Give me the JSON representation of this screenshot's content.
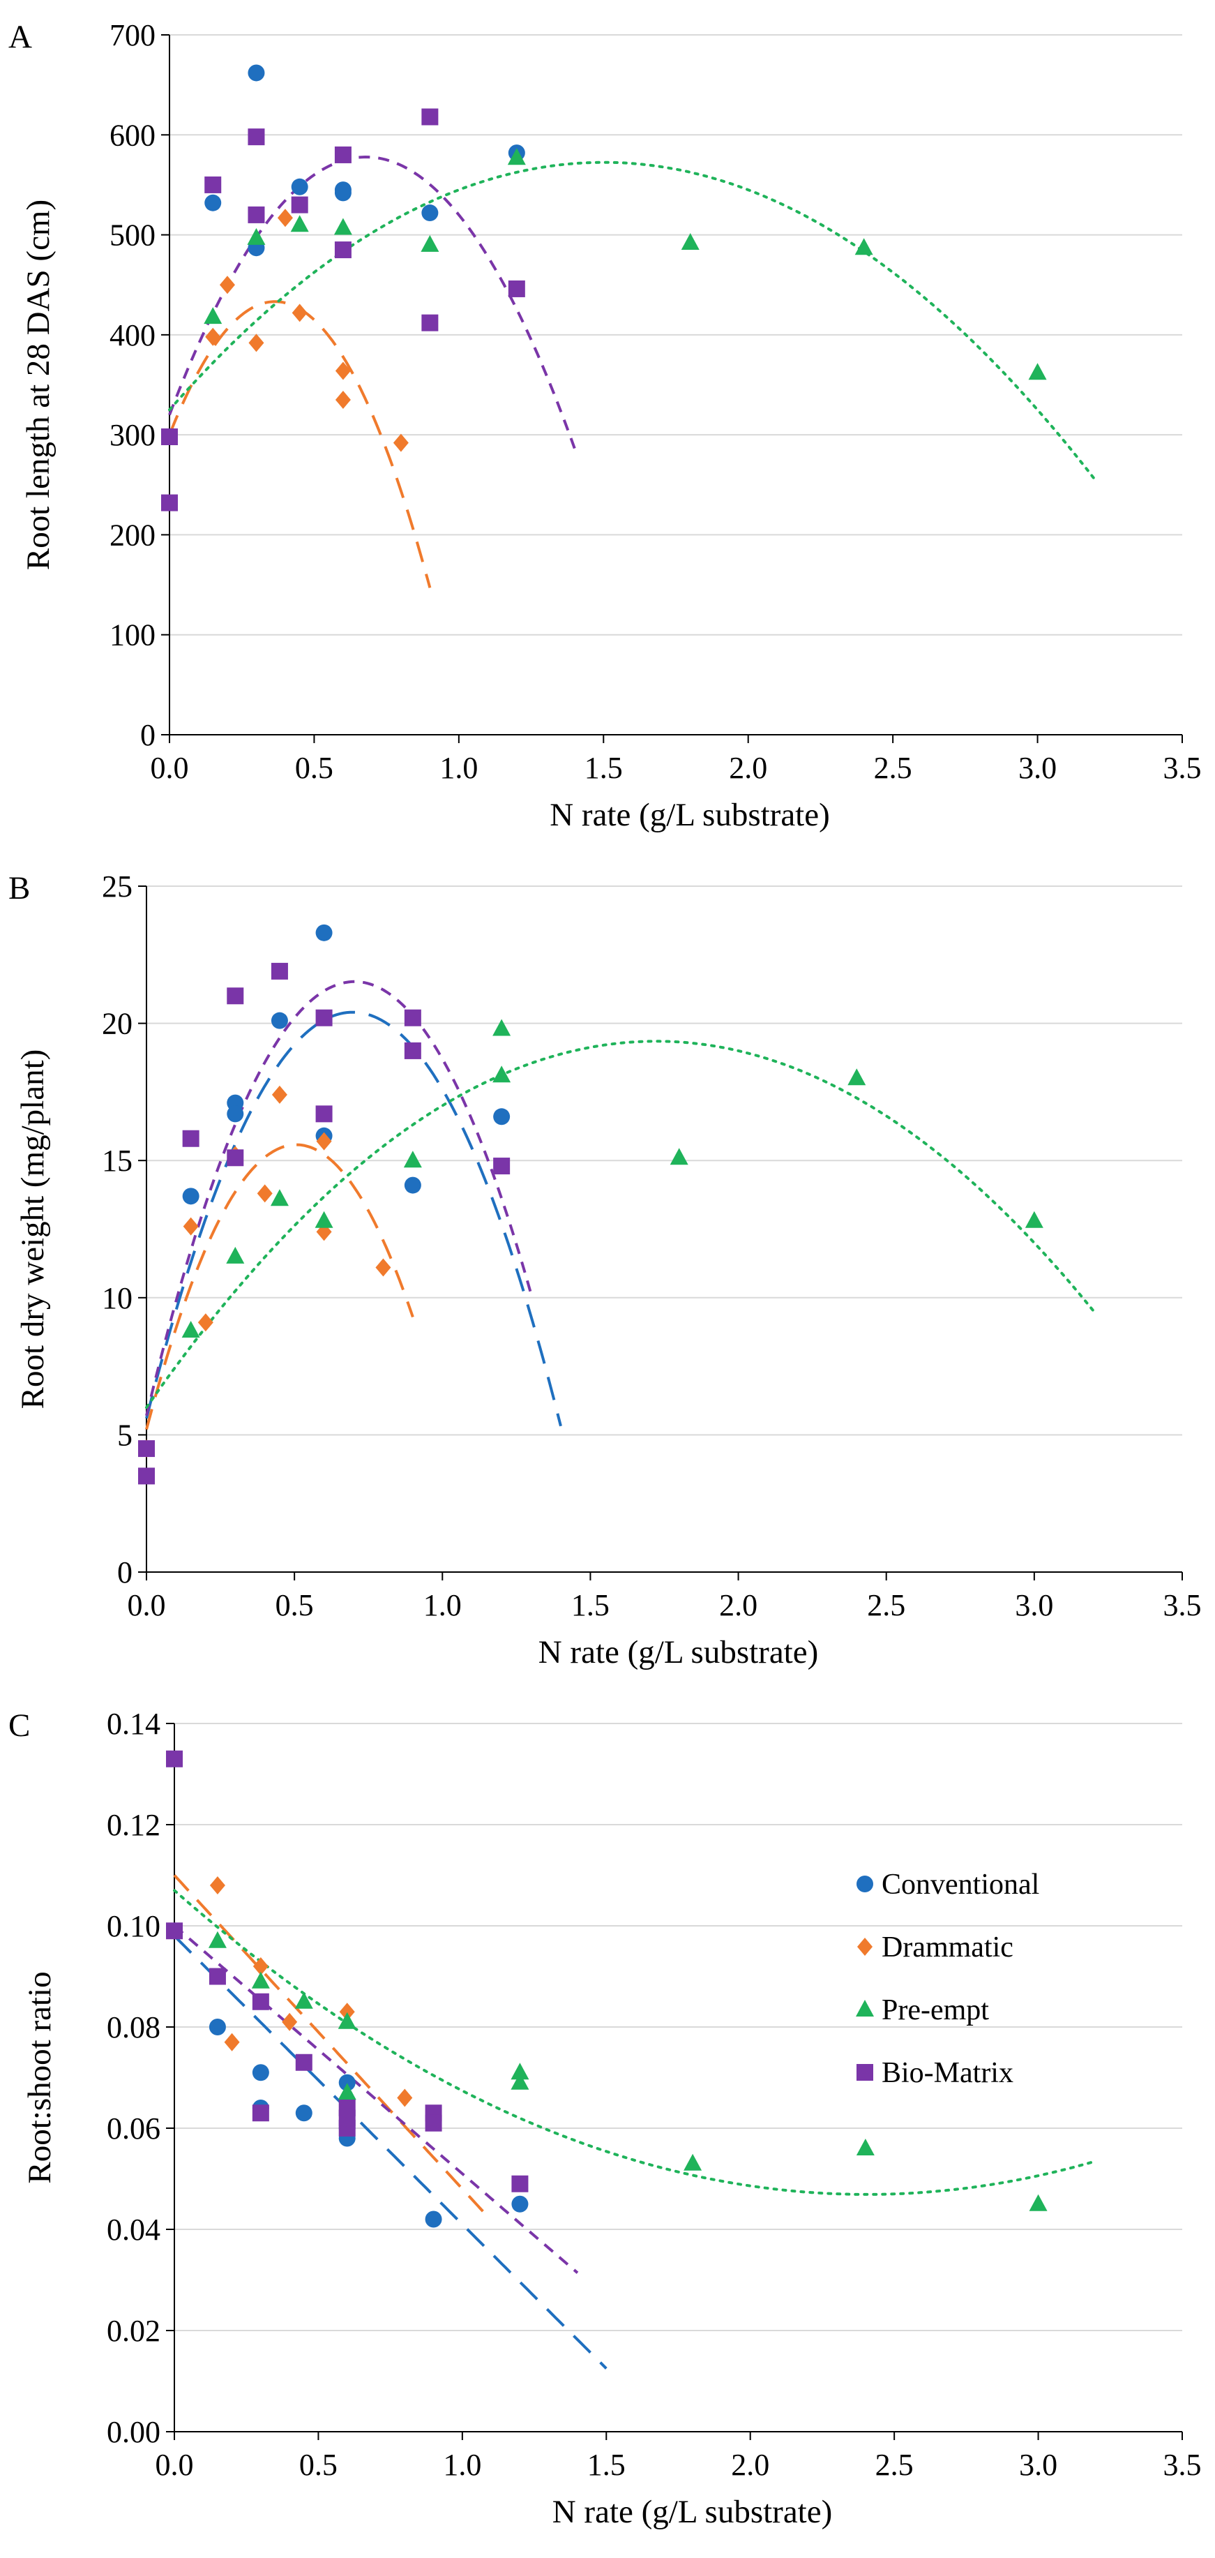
{
  "figure": {
    "panel_letters": [
      "A",
      "B",
      "C"
    ]
  },
  "series_styles": {
    "Conventional": {
      "color": "#1f6fbf",
      "marker": "circle",
      "dash": "34 20"
    },
    "Drammatic": {
      "color": "#f07a2c",
      "marker": "diamond",
      "dash": "30 18"
    },
    "Pre-empt": {
      "color": "#1fb35a",
      "marker": "triangle",
      "dash": "4 9"
    },
    "Bio-Matrix": {
      "color": "#7a35a8",
      "marker": "square",
      "dash": "16 12"
    }
  },
  "chart_data": [
    {
      "type": "scatter",
      "panel": "A",
      "xlabel": "N rate (g/L substrate)",
      "ylabel": "Root length at 28 DAS (cm)",
      "xlim": [
        0,
        3.5
      ],
      "ylim": [
        0,
        700
      ],
      "xticks": [
        0,
        0.5,
        1.0,
        1.5,
        2.0,
        2.5,
        3.0,
        3.5
      ],
      "xtick_labels": [
        "0.0",
        "0.5",
        "1.0",
        "1.5",
        "2.0",
        "2.5",
        "3.0",
        "3.5"
      ],
      "yticks": [
        0,
        100,
        200,
        300,
        400,
        500,
        600,
        700
      ],
      "ytick_labels": [
        "0",
        "100",
        "200",
        "300",
        "400",
        "500",
        "600",
        "700"
      ],
      "grid": "horizontal",
      "series": [
        {
          "name": "Conventional",
          "points": [
            [
              0.15,
              532
            ],
            [
              0.3,
              662
            ],
            [
              0.3,
              487
            ],
            [
              0.45,
              548
            ],
            [
              0.6,
              545
            ],
            [
              0.6,
              542
            ],
            [
              0.9,
              522
            ],
            [
              1.2,
              582
            ]
          ]
        },
        {
          "name": "Drammatic",
          "points": [
            [
              0.15,
              398
            ],
            [
              0.2,
              450
            ],
            [
              0.3,
              392
            ],
            [
              0.4,
              517
            ],
            [
              0.45,
              422
            ],
            [
              0.6,
              364
            ],
            [
              0.6,
              335
            ],
            [
              0.8,
              292
            ]
          ]
        },
        {
          "name": "Pre-empt",
          "points": [
            [
              0.15,
              418
            ],
            [
              0.3,
              497
            ],
            [
              0.45,
              510
            ],
            [
              0.6,
              507
            ],
            [
              0.9,
              490
            ],
            [
              1.2,
              577
            ],
            [
              1.8,
              492
            ],
            [
              2.4,
              487
            ],
            [
              3.0,
              362
            ]
          ]
        },
        {
          "name": "Bio-Matrix",
          "points": [
            [
              0.0,
              298
            ],
            [
              0.0,
              232
            ],
            [
              0.15,
              550
            ],
            [
              0.3,
              598
            ],
            [
              0.3,
              520
            ],
            [
              0.45,
              530
            ],
            [
              0.6,
              580
            ],
            [
              0.6,
              485
            ],
            [
              0.9,
              618
            ],
            [
              0.9,
              412
            ],
            [
              1.2,
              446
            ]
          ]
        }
      ],
      "trendlines": [
        {
          "series": "Drammatic",
          "kind": "quadratic",
          "coef": [
            300,
            730,
            -1000
          ],
          "x_range": [
            0,
            0.9
          ]
        },
        {
          "series": "Bio-Matrix",
          "kind": "quadratic",
          "coef": [
            320,
            760,
            -560
          ],
          "x_range": [
            0,
            1.4
          ]
        },
        {
          "series": "Pre-empt",
          "kind": "quadratic",
          "coef": [
            325,
            330,
            -110
          ],
          "x_range": [
            0,
            3.2
          ]
        }
      ]
    },
    {
      "type": "scatter",
      "panel": "B",
      "xlabel": "N rate (g/L substrate)",
      "ylabel": "Root dry weight (mg/plant)",
      "xlim": [
        0,
        3.5
      ],
      "ylim": [
        0,
        25
      ],
      "xticks": [
        0,
        0.5,
        1.0,
        1.5,
        2.0,
        2.5,
        3.0,
        3.5
      ],
      "xtick_labels": [
        "0.0",
        "0.5",
        "1.0",
        "1.5",
        "2.0",
        "2.5",
        "3.0",
        "3.5"
      ],
      "yticks": [
        0,
        5,
        10,
        15,
        20,
        25
      ],
      "ytick_labels": [
        "0",
        "5",
        "10",
        "15",
        "20",
        "25"
      ],
      "grid": "horizontal",
      "series": [
        {
          "name": "Conventional",
          "points": [
            [
              0.15,
              13.7
            ],
            [
              0.3,
              17.1
            ],
            [
              0.3,
              16.7
            ],
            [
              0.45,
              20.1
            ],
            [
              0.6,
              23.3
            ],
            [
              0.6,
              15.9
            ],
            [
              0.9,
              14.1
            ],
            [
              1.2,
              16.6
            ]
          ]
        },
        {
          "name": "Drammatic",
          "points": [
            [
              0.0,
              4.5
            ],
            [
              0.15,
              12.6
            ],
            [
              0.2,
              9.1
            ],
            [
              0.3,
              15.2
            ],
            [
              0.4,
              13.8
            ],
            [
              0.45,
              17.4
            ],
            [
              0.6,
              15.7
            ],
            [
              0.6,
              12.4
            ],
            [
              0.8,
              11.1
            ]
          ]
        },
        {
          "name": "Pre-empt",
          "points": [
            [
              0.15,
              8.8
            ],
            [
              0.3,
              11.5
            ],
            [
              0.45,
              13.6
            ],
            [
              0.6,
              12.8
            ],
            [
              0.9,
              15.0
            ],
            [
              1.2,
              19.8
            ],
            [
              1.2,
              18.1
            ],
            [
              1.8,
              15.1
            ],
            [
              2.4,
              18.0
            ],
            [
              3.0,
              12.8
            ]
          ]
        },
        {
          "name": "Bio-Matrix",
          "points": [
            [
              0.0,
              4.5
            ],
            [
              0.0,
              3.5
            ],
            [
              0.15,
              15.8
            ],
            [
              0.3,
              21.0
            ],
            [
              0.3,
              15.1
            ],
            [
              0.45,
              21.9
            ],
            [
              0.6,
              20.2
            ],
            [
              0.6,
              16.7
            ],
            [
              0.9,
              20.2
            ],
            [
              0.9,
              19.0
            ],
            [
              1.2,
              14.8
            ]
          ]
        }
      ],
      "trendlines": [
        {
          "series": "Conventional",
          "kind": "quadratic",
          "coef": [
            5.6,
            42.5,
            -30.5
          ],
          "x_range": [
            0,
            1.4
          ]
        },
        {
          "series": "Drammatic",
          "kind": "quadratic",
          "coef": [
            5.2,
            41.0,
            -40.5
          ],
          "x_range": [
            0,
            0.9
          ]
        },
        {
          "series": "Bio-Matrix",
          "kind": "quadratic",
          "coef": [
            5.7,
            45.0,
            -32.0
          ],
          "x_range": [
            0,
            1.3
          ]
        },
        {
          "series": "Pre-empt",
          "kind": "quadratic",
          "coef": [
            6.0,
            15.5,
            -4.5
          ],
          "x_range": [
            0,
            3.2
          ]
        }
      ]
    },
    {
      "type": "scatter",
      "panel": "C",
      "xlabel": "N rate (g/L substrate)",
      "ylabel": "Root:shoot  ratio",
      "xlim": [
        0,
        3.5
      ],
      "ylim": [
        0,
        0.14
      ],
      "xticks": [
        0,
        0.5,
        1.0,
        1.5,
        2.0,
        2.5,
        3.0,
        3.5
      ],
      "xtick_labels": [
        "0.0",
        "0.5",
        "1.0",
        "1.5",
        "2.0",
        "2.5",
        "3.0",
        "3.5"
      ],
      "yticks": [
        0,
        0.02,
        0.04,
        0.06,
        0.08,
        0.1,
        0.12,
        0.14
      ],
      "ytick_labels": [
        "0.00",
        "0.02",
        "0.04",
        "0.06",
        "0.08",
        "0.10",
        "0.12",
        "0.14"
      ],
      "grid": "horizontal",
      "legend": {
        "position": "top-right",
        "entries": [
          "Conventional",
          "Drammatic",
          "Pre-empt",
          "Bio-Matrix"
        ]
      },
      "series": [
        {
          "name": "Conventional",
          "points": [
            [
              0.0,
              0.099
            ],
            [
              0.15,
              0.08
            ],
            [
              0.3,
              0.071
            ],
            [
              0.3,
              0.064
            ],
            [
              0.45,
              0.063
            ],
            [
              0.6,
              0.069
            ],
            [
              0.6,
              0.06
            ],
            [
              0.6,
              0.058
            ],
            [
              0.9,
              0.042
            ],
            [
              1.2,
              0.045
            ]
          ]
        },
        {
          "name": "Drammatic",
          "points": [
            [
              0.15,
              0.108
            ],
            [
              0.2,
              0.077
            ],
            [
              0.3,
              0.092
            ],
            [
              0.4,
              0.081
            ],
            [
              0.6,
              0.083
            ],
            [
              0.8,
              0.066
            ]
          ]
        },
        {
          "name": "Pre-empt",
          "points": [
            [
              0.15,
              0.097
            ],
            [
              0.3,
              0.089
            ],
            [
              0.45,
              0.085
            ],
            [
              0.6,
              0.081
            ],
            [
              0.6,
              0.067
            ],
            [
              1.2,
              0.071
            ],
            [
              1.2,
              0.069
            ],
            [
              1.8,
              0.053
            ],
            [
              2.4,
              0.056
            ],
            [
              3.0,
              0.045
            ]
          ]
        },
        {
          "name": "Bio-Matrix",
          "points": [
            [
              0.0,
              0.133
            ],
            [
              0.0,
              0.099
            ],
            [
              0.15,
              0.09
            ],
            [
              0.3,
              0.085
            ],
            [
              0.3,
              0.063
            ],
            [
              0.45,
              0.073
            ],
            [
              0.6,
              0.064
            ],
            [
              0.6,
              0.062
            ],
            [
              0.6,
              0.06
            ],
            [
              0.9,
              0.063
            ],
            [
              0.9,
              0.061
            ],
            [
              1.2,
              0.049
            ]
          ]
        }
      ],
      "trendlines": [
        {
          "series": "Conventional",
          "kind": "linear",
          "coef": [
            0.098,
            -0.057
          ],
          "x_range": [
            0,
            1.5
          ]
        },
        {
          "series": "Drammatic",
          "kind": "linear",
          "coef": [
            0.11,
            -0.062
          ],
          "x_range": [
            0,
            1.1
          ]
        },
        {
          "series": "Bio-Matrix",
          "kind": "linear",
          "coef": [
            0.1,
            -0.049
          ],
          "x_range": [
            0,
            1.4
          ]
        },
        {
          "series": "Pre-empt",
          "kind": "quadratic",
          "coef": [
            0.107,
            -0.05,
            0.0104
          ],
          "x_range": [
            0,
            3.2
          ]
        }
      ]
    }
  ]
}
